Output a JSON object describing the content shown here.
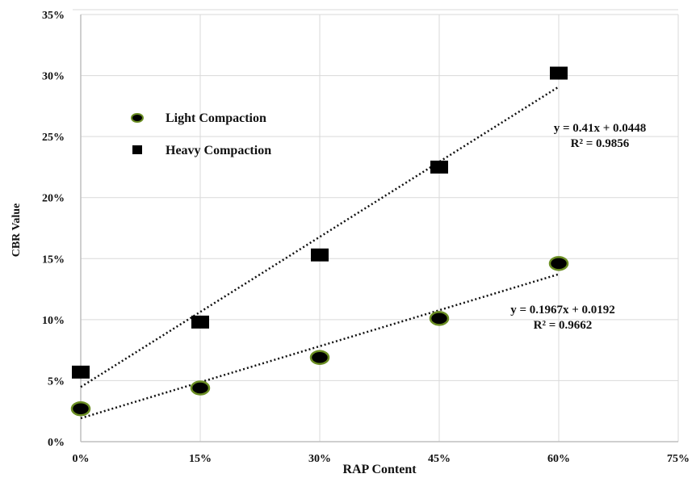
{
  "chart_data": {
    "type": "scatter",
    "xlabel": "RAP Content",
    "ylabel": "CBR Value",
    "xlim": [
      0,
      0.75
    ],
    "ylim": [
      0,
      0.35
    ],
    "x_ticks": [
      "0%",
      "15%",
      "30%",
      "45%",
      "60%",
      "75%"
    ],
    "y_ticks": [
      "0%",
      "5%",
      "10%",
      "15%",
      "20%",
      "25%",
      "30%",
      "35%"
    ],
    "x_tick_values": [
      0,
      0.15,
      0.3,
      0.45,
      0.6,
      0.75
    ],
    "y_tick_values": [
      0,
      0.05,
      0.1,
      0.15,
      0.2,
      0.25,
      0.3,
      0.35
    ],
    "grid": "vertical and horizontal",
    "legend_position": "upper-left",
    "series": [
      {
        "name": "Light Compaction",
        "marker": "circle",
        "color": "#000000",
        "marker_edge": "#6b8e23",
        "x": [
          0,
          0.15,
          0.3,
          0.45,
          0.6
        ],
        "y": [
          0.027,
          0.044,
          0.069,
          0.101,
          0.146
        ],
        "trendline": {
          "slope": 0.1967,
          "intercept": 0.0192,
          "x_range": [
            0,
            0.6
          ]
        },
        "equation": "y = 0.1967x + 0.0192",
        "r2": "R² = 0.9662"
      },
      {
        "name": "Heavy Compaction",
        "marker": "square",
        "color": "#000000",
        "x": [
          0,
          0.15,
          0.3,
          0.45,
          0.6
        ],
        "y": [
          0.057,
          0.098,
          0.153,
          0.225,
          0.302
        ],
        "trendline": {
          "slope": 0.41,
          "intercept": 0.0448,
          "x_range": [
            0,
            0.6
          ]
        },
        "equation": "y = 0.41x + 0.0448",
        "r2": "R² = 0.9856"
      }
    ]
  }
}
